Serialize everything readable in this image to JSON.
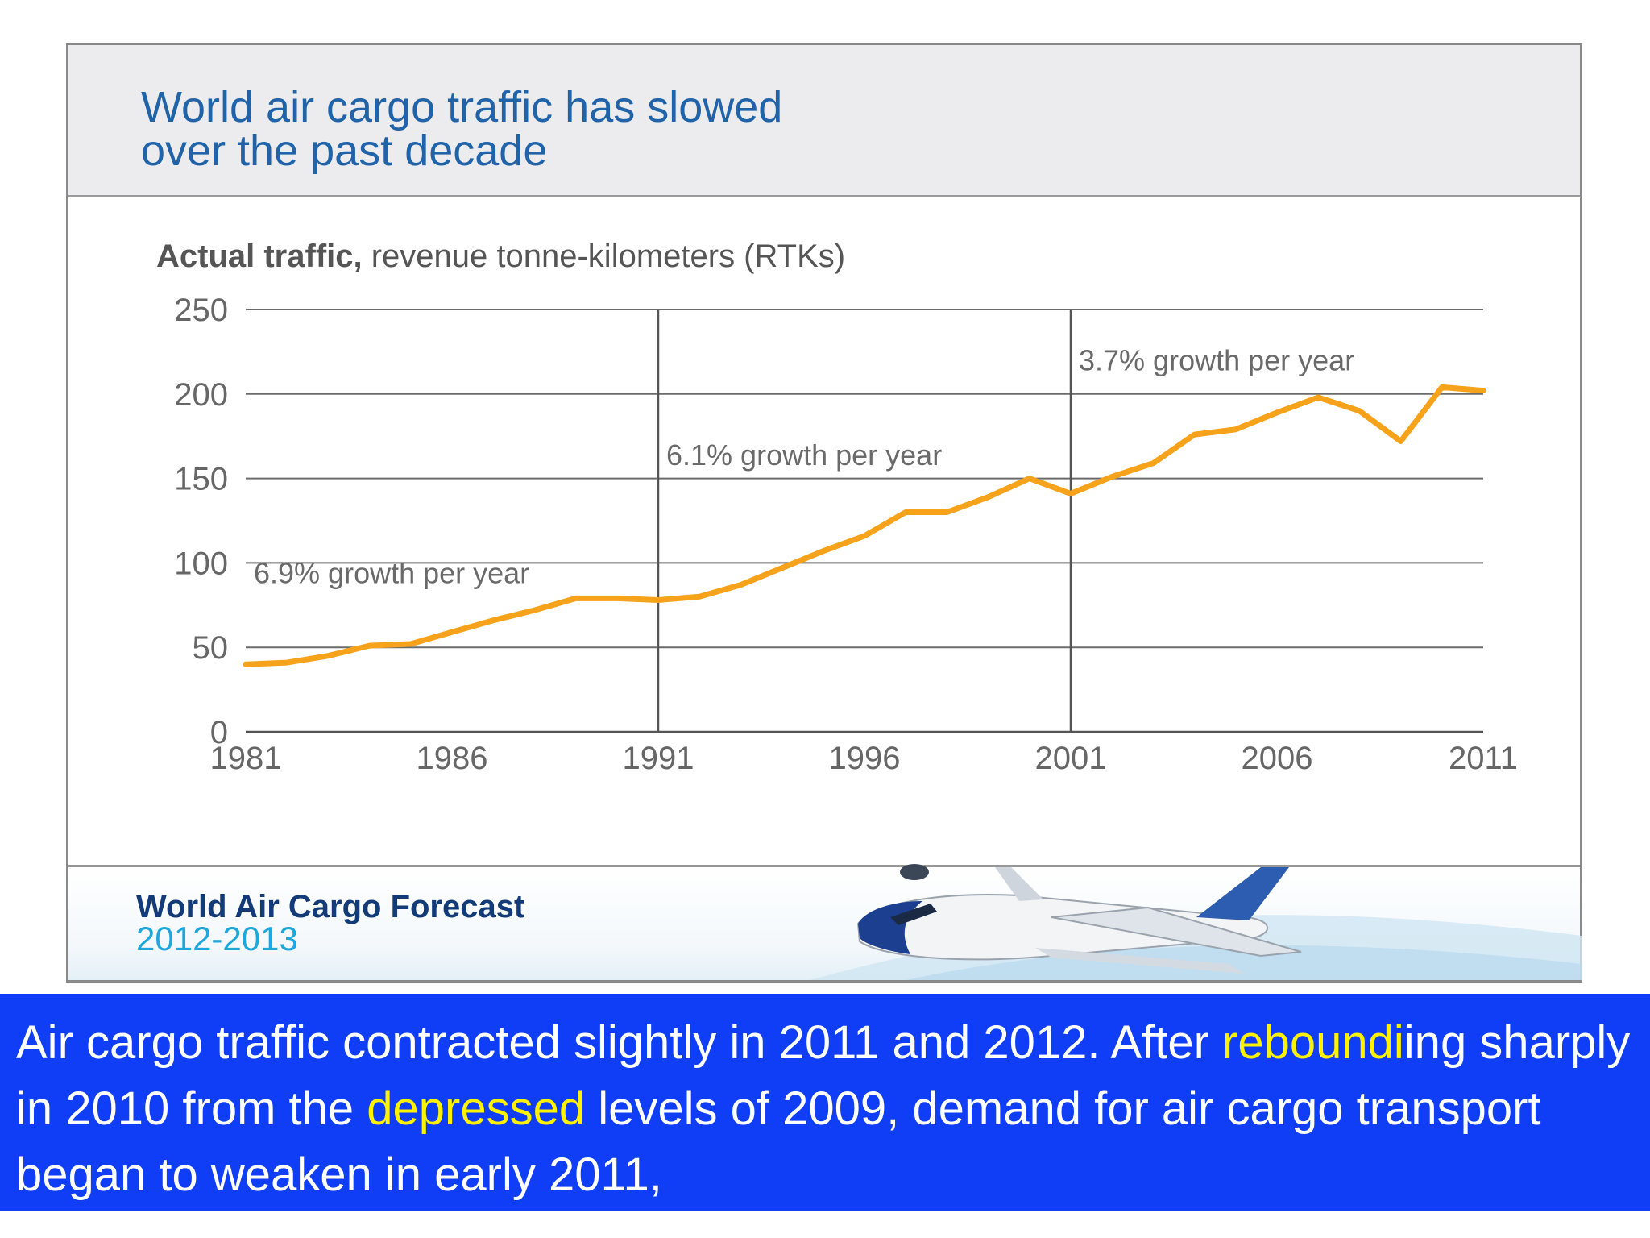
{
  "header": {
    "title_line1": "World air cargo traffic has slowed",
    "title_line2": "over the past decade"
  },
  "chart_data": {
    "type": "line",
    "title": "World air cargo traffic has slowed over the past decade",
    "subtitle_bold": "Actual traffic,",
    "subtitle_rest": " revenue tonne-kilometers (RTKs)",
    "xlabel": "",
    "ylabel": "",
    "xlim": [
      1981,
      2011
    ],
    "ylim": [
      0,
      250
    ],
    "grid": true,
    "x": [
      1981,
      1982,
      1983,
      1984,
      1985,
      1986,
      1987,
      1988,
      1989,
      1990,
      1991,
      1992,
      1993,
      1994,
      1995,
      1996,
      1997,
      1998,
      1999,
      2000,
      2001,
      2002,
      2003,
      2004,
      2005,
      2006,
      2007,
      2008,
      2009,
      2010,
      2011
    ],
    "series": [
      {
        "values": [
          40,
          41,
          45,
          51,
          52,
          59,
          66,
          72,
          79,
          79,
          78,
          80,
          87,
          97,
          107,
          116,
          130,
          130,
          139,
          150,
          141,
          151,
          159,
          176,
          179,
          189,
          198,
          190,
          172,
          204,
          202
        ],
        "color": "#f7a21b"
      }
    ],
    "x_ticks": [
      "1981",
      "1986",
      "1991",
      "1996",
      "2001",
      "2006",
      "2011"
    ],
    "y_ticks": [
      "0",
      "50",
      "100",
      "150",
      "200",
      "250"
    ],
    "dividers_x": [
      1991,
      2001
    ],
    "annotations": [
      {
        "text": "6.9% growth per year",
        "x": 1981,
        "y": 88
      },
      {
        "text": "6.1% growth per year",
        "x": 1991,
        "y": 158
      },
      {
        "text": "3.7% growth per year",
        "x": 2001,
        "y": 214
      }
    ]
  },
  "footer": {
    "title": "World Air Cargo Forecast",
    "years": "2012-2013"
  },
  "caption": {
    "part1": "Air cargo traffic contracted slightly in 2011 and 2012. After ",
    "hl1": "reboundi",
    "part2": "ing sharply in 2010 from the ",
    "hl2": "depressed",
    "part3": " levels of 2009, demand for air cargo transport began to weaken in early 2011,"
  }
}
